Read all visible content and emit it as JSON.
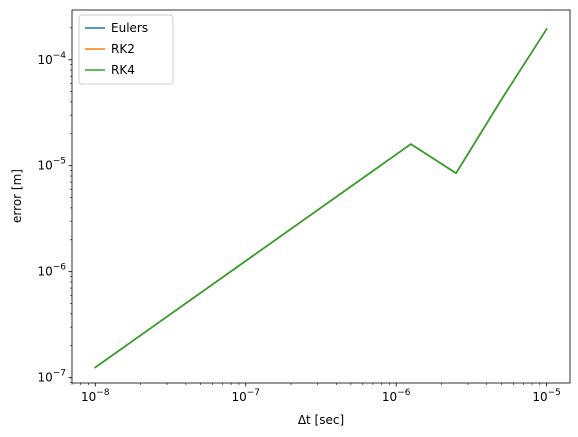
{
  "chart_data": {
    "type": "line",
    "title": "",
    "xlabel": "Δt [sec]",
    "ylabel": "error [m]",
    "xscale": "log",
    "yscale": "log",
    "xlim": [
      7e-09,
      1.43e-05
    ],
    "ylim": [
      8.9e-08,
      0.000295
    ],
    "grid": false,
    "legend_position": "top-left",
    "x_ticks": [
      {
        "value": 1e-08,
        "base": "10",
        "exp": "−8"
      },
      {
        "value": 1e-07,
        "base": "10",
        "exp": "−7"
      },
      {
        "value": 1e-06,
        "base": "10",
        "exp": "−6"
      },
      {
        "value": 1e-05,
        "base": "10",
        "exp": "−5"
      }
    ],
    "y_ticks": [
      {
        "value": 1e-07,
        "base": "10",
        "exp": "−7"
      },
      {
        "value": 1e-06,
        "base": "10",
        "exp": "−6"
      },
      {
        "value": 1e-05,
        "base": "10",
        "exp": "−5"
      },
      {
        "value": 0.0001,
        "base": "10",
        "exp": "−4"
      }
    ],
    "series": [
      {
        "name": "Eulers",
        "color": "#1f77b4",
        "x": [
          1e-08,
          1.25e-06,
          2.5e-06,
          5e-06,
          1e-05
        ],
        "y": [
          1.25e-07,
          1.6e-05,
          8.5e-06,
          4.2e-05,
          0.000195
        ]
      },
      {
        "name": "RK2",
        "color": "#ff7f0e",
        "x": [
          1e-08,
          1.25e-06,
          2.5e-06,
          5e-06,
          1e-05
        ],
        "y": [
          1.25e-07,
          1.6e-05,
          8.5e-06,
          4.2e-05,
          0.000195
        ]
      },
      {
        "name": "RK4",
        "color": "#2ca02c",
        "x": [
          1e-08,
          1.25e-06,
          2.5e-06,
          5e-06,
          1e-05
        ],
        "y": [
          1.25e-07,
          1.6e-05,
          8.5e-06,
          4.2e-05,
          0.000195
        ]
      }
    ]
  }
}
